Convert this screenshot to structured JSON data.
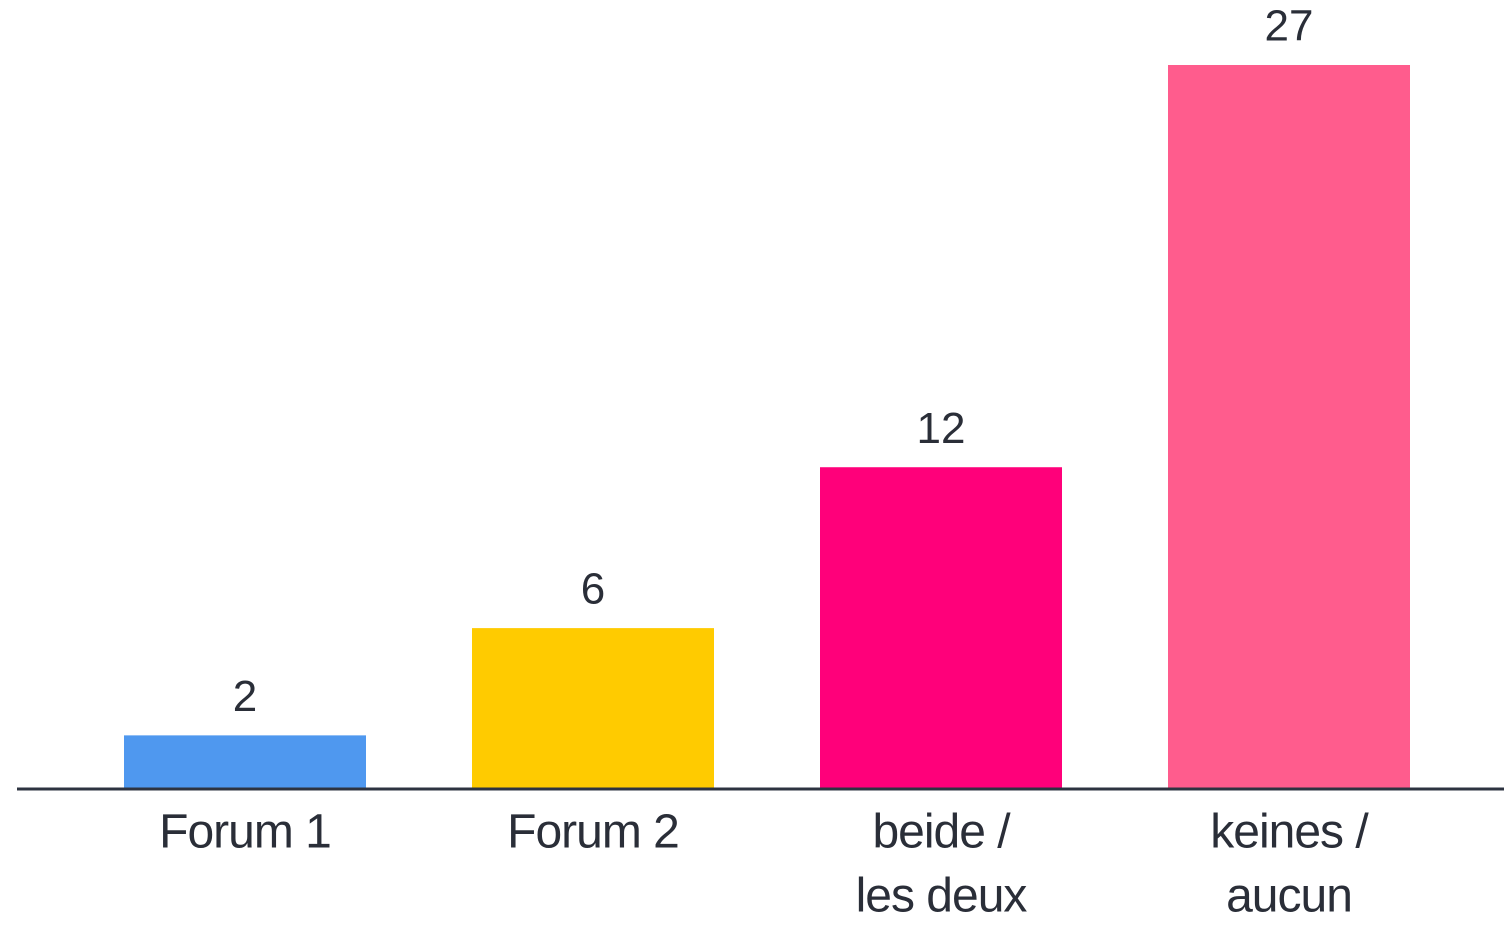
{
  "chart_data": {
    "type": "bar",
    "categories": [
      [
        "Forum 1"
      ],
      [
        "Forum 2"
      ],
      [
        "beide /",
        "les deux"
      ],
      [
        "keines /",
        "aucun"
      ]
    ],
    "values": [
      2,
      6,
      12,
      27
    ],
    "colors": [
      "#4f98ef",
      "#ffcb00",
      "#ff007a",
      "#ff5c8d"
    ]
  }
}
